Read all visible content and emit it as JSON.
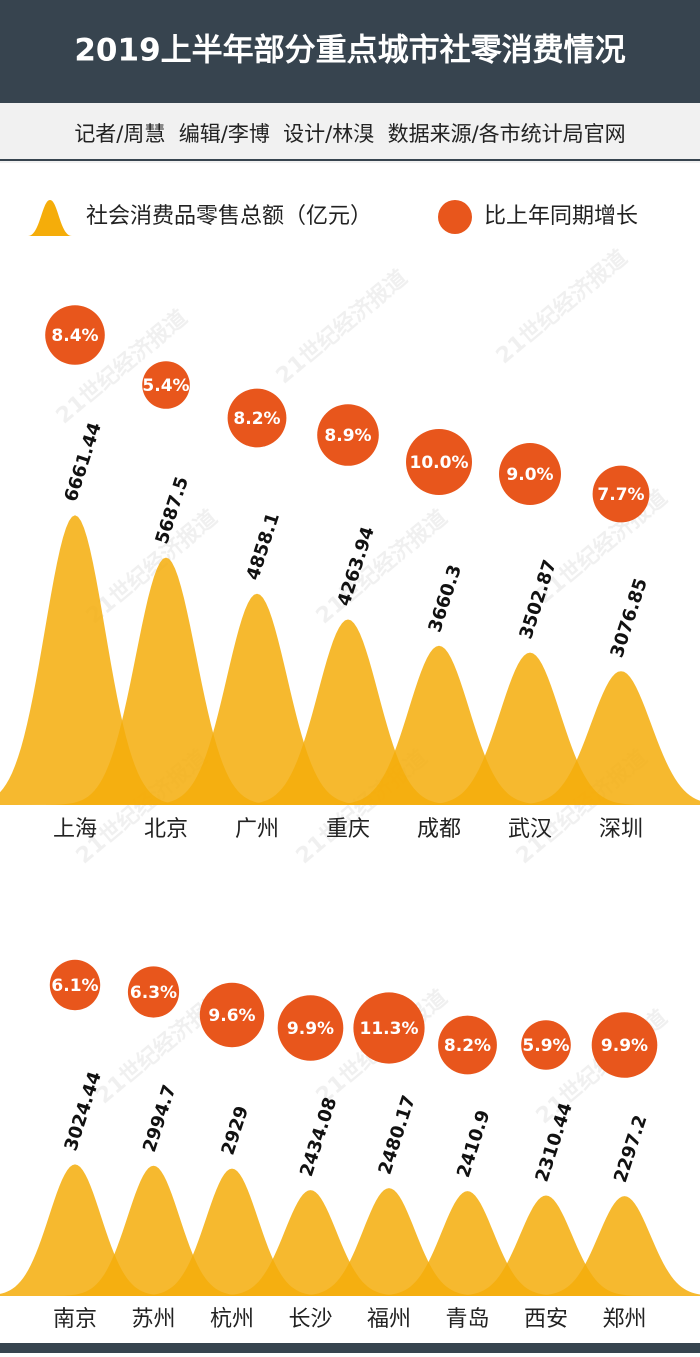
{
  "watermark": "21世纪经济报道",
  "chart_data": [
    {
      "type": "bell",
      "title": "2019上半年部分重点城市社零消费情况",
      "subtitle": "记者/周慧  编辑/李博  设计/林湨  数据来源/各市统计局官网",
      "categories": [
        "上海",
        "北京",
        "广州",
        "重庆",
        "成都",
        "武汉",
        "深圳"
      ],
      "series": [
        {
          "name": "社会消费品零售总额（亿元）",
          "color": "#f5ad0a",
          "values": [
            6661.44,
            5687.5,
            4858.1,
            4263.94,
            3660.3,
            3502.87,
            3076.85
          ]
        },
        {
          "name": "比上年同期增长",
          "color": "#e8561c",
          "values": [
            8.4,
            5.4,
            8.2,
            8.9,
            10.0,
            9.0,
            7.7
          ],
          "value_labels": [
            "8.4%",
            "5.4%",
            "8.2%",
            "8.9%",
            "10.0%",
            "9.0%",
            "7.7%"
          ]
        }
      ]
    },
    {
      "type": "bell",
      "categories": [
        "南京",
        "苏州",
        "杭州",
        "长沙",
        "福州",
        "青岛",
        "西安",
        "郑州"
      ],
      "series": [
        {
          "name": "社会消费品零售总额（亿元）",
          "color": "#f5ad0a",
          "values": [
            3024.44,
            2994.7,
            2929,
            2434.08,
            2480.17,
            2410.9,
            2310.44,
            2297.2
          ]
        },
        {
          "name": "比上年同期增长",
          "color": "#e8561c",
          "values": [
            6.1,
            6.3,
            9.6,
            9.9,
            11.3,
            8.2,
            5.9,
            9.9
          ],
          "value_labels": [
            "6.1%",
            "6.3%",
            "9.6%",
            "9.9%",
            "11.3%",
            "8.2%",
            "5.9%",
            "9.9%"
          ]
        }
      ]
    }
  ]
}
